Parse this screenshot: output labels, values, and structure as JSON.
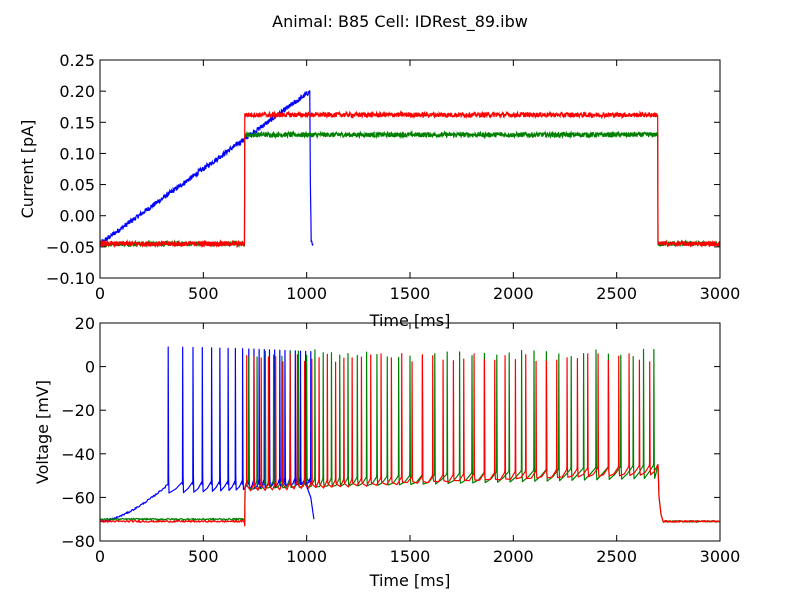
{
  "figure": {
    "title": "Animal: B85 Cell: IDRest_89.ibw"
  },
  "chart_data": [
    {
      "type": "line",
      "xlabel": "Time [ms]",
      "ylabel": "Current [pA]",
      "xlim": [
        0,
        3000
      ],
      "ylim": [
        -0.1,
        0.25
      ],
      "xticks": [
        0,
        500,
        1000,
        1500,
        2000,
        2500,
        3000
      ],
      "yticks": [
        -0.1,
        -0.05,
        0.0,
        0.05,
        0.1,
        0.15,
        0.2,
        0.25
      ],
      "ytick_labels": [
        "−0.10",
        "−0.05",
        "0.00",
        "0.05",
        "0.10",
        "0.15",
        "0.20",
        "0.25"
      ],
      "grid": false,
      "series": [
        {
          "color": "#0000ff",
          "kind": "ramp",
          "points": [
            [
              0,
              -0.045
            ],
            [
              1010,
              0.198
            ],
            [
              1015,
              0.2
            ],
            [
              1018,
              0.05
            ],
            [
              1022,
              -0.04
            ],
            [
              1030,
              -0.045
            ]
          ],
          "noise": 0.004
        },
        {
          "color": "#008000",
          "kind": "step",
          "baseline": -0.045,
          "level": 0.13,
          "onset": 700,
          "offset": 2700,
          "end": 3000,
          "noise": 0.004
        },
        {
          "color": "#ff0000",
          "kind": "step",
          "baseline": -0.045,
          "level": 0.162,
          "onset": 700,
          "offset": 2700,
          "end": 3000,
          "noise": 0.004
        }
      ]
    },
    {
      "type": "line",
      "xlabel": "Time [ms]",
      "ylabel": "Voltage [mV]",
      "xlim": [
        0,
        3000
      ],
      "ylim": [
        -80,
        20
      ],
      "xticks": [
        0,
        500,
        1000,
        1500,
        2000,
        2500,
        3000
      ],
      "yticks": [
        -80,
        -60,
        -40,
        -20,
        0,
        20
      ],
      "ytick_labels": [
        "−80",
        "−60",
        "−40",
        "−20",
        "0",
        "20"
      ],
      "grid": false,
      "series": [
        {
          "color": "#0000ff",
          "baseline": -71,
          "ramp_start": -71,
          "ramp_end": -54,
          "end": 1035,
          "tail": [
            [
              1000,
              -55
            ],
            [
              1035,
              -70
            ]
          ],
          "spikes": [
            330,
            400,
            450,
            495,
            540,
            580,
            620,
            655,
            690,
            720,
            745,
            770,
            795,
            820,
            845,
            870,
            895,
            920,
            945,
            970,
            995,
            1020
          ],
          "peak": 9,
          "trough": -58
        },
        {
          "color": "#008000",
          "baseline": -70,
          "onset": 700,
          "offset": 2700,
          "end": 3000,
          "drift_start": -54,
          "drift_end": -46,
          "spikes": [
            720,
            760,
            800,
            840,
            880,
            920,
            960,
            1000,
            1040,
            1080,
            1120,
            1160,
            1200,
            1245,
            1290,
            1340,
            1390,
            1445,
            1500,
            1560,
            1620,
            1680,
            1740,
            1800,
            1860,
            1920,
            1980,
            2040,
            2100,
            2160,
            2220,
            2280,
            2340,
            2400,
            2460,
            2520,
            2580,
            2630,
            2680
          ],
          "peak": 6,
          "trough": -56
        },
        {
          "color": "#ff0000",
          "baseline": -71,
          "onset": 700,
          "offset": 2700,
          "end": 3000,
          "drift_start": -55,
          "drift_end": -46,
          "spikes": [
            710,
            745,
            780,
            815,
            850,
            885,
            920,
            955,
            990,
            1025,
            1060,
            1100,
            1140,
            1180,
            1220,
            1265,
            1310,
            1360,
            1410,
            1460,
            1510,
            1560,
            1610,
            1660,
            1710,
            1760,
            1810,
            1860,
            1910,
            1960,
            2010,
            2060,
            2110,
            2160,
            2210,
            2260,
            2310,
            2360,
            2410,
            2460,
            2510,
            2560,
            2610,
            2660
          ],
          "peak": 4,
          "trough": -55
        }
      ]
    }
  ]
}
